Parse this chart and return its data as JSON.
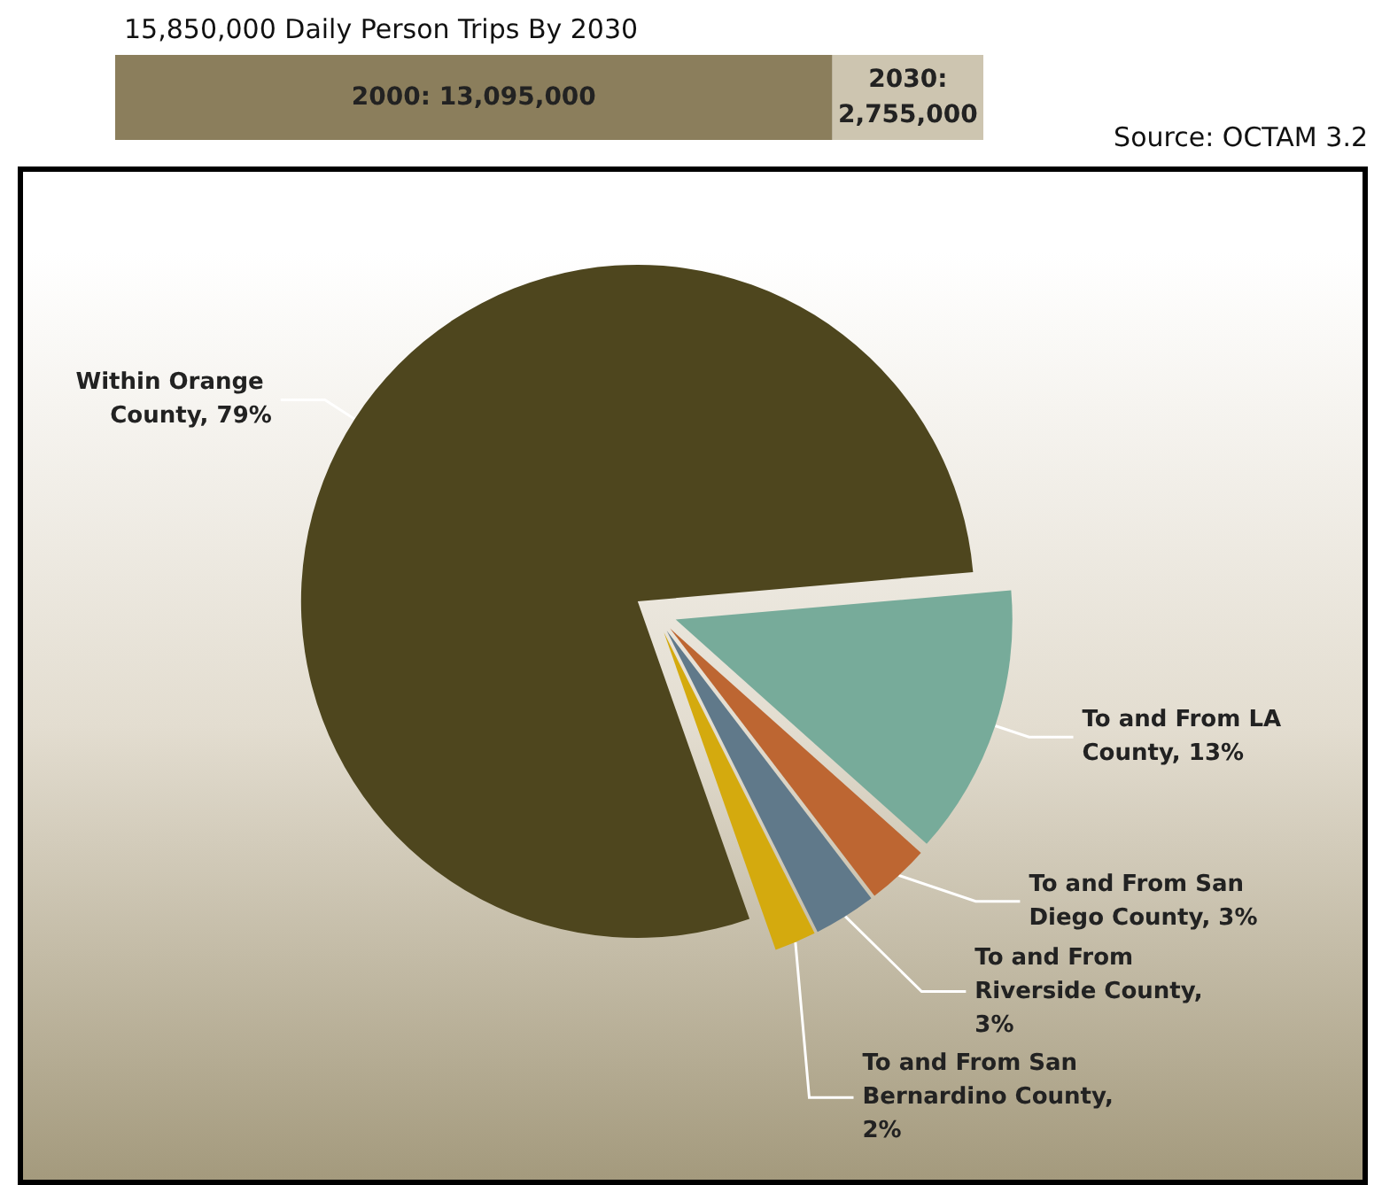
{
  "chart_data": [
    {
      "type": "bar",
      "title": "15,850,000 Daily Person Trips By 2030",
      "orientation": "horizontal",
      "stacked": true,
      "categories": [
        null
      ],
      "series": [
        {
          "color": "#8b7e5c",
          "values": [
            13095000
          ],
          "value_labels": [
            "2000: 13,095,000"
          ]
        },
        {
          "color": "#cdc5b0",
          "values": [
            2755000
          ],
          "value_labels": [
            "2030:\n2,755,000"
          ]
        }
      ]
    },
    {
      "type": "pie",
      "annotations": [
        "Source: OCTAM 3.2"
      ],
      "categories": [
        "Within Orange County, 79%",
        "To and From San Bernardino County, 2%",
        "To and From Riverside County, 3%",
        "To and From San Diego County, 3%",
        "To and From LA County, 13%"
      ],
      "values": [
        79,
        2,
        3,
        3,
        13
      ],
      "colors": [
        "#4e461e",
        "#d4aa0e",
        "#60798a",
        "#bd6632",
        "#77ab9a"
      ]
    }
  ]
}
